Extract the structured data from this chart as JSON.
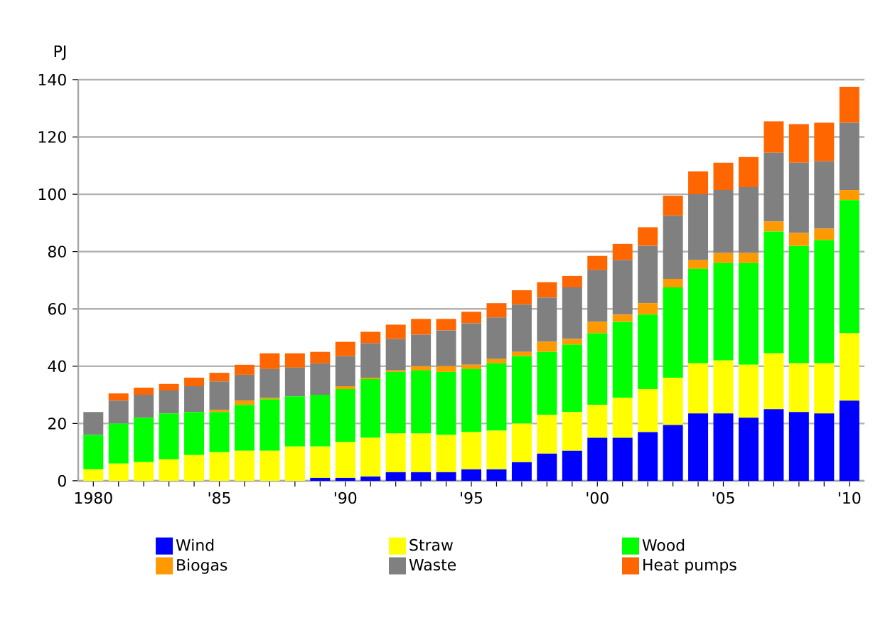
{
  "chart_data": {
    "type": "bar",
    "stacked": true,
    "ylabel": "PJ",
    "categories": [
      "1980",
      null,
      null,
      null,
      null,
      "'85",
      null,
      null,
      null,
      null,
      "'90",
      null,
      null,
      null,
      null,
      "'95",
      null,
      null,
      null,
      null,
      "'00",
      null,
      null,
      null,
      null,
      "'05",
      null,
      null,
      null,
      null,
      "'10"
    ],
    "ylim": [
      0,
      140
    ],
    "yticks": [
      0,
      20,
      40,
      60,
      80,
      100,
      120,
      140
    ],
    "grid": "y",
    "legend": "bottom",
    "series": [
      {
        "name": "Wind",
        "color": "#0000ff",
        "values": [
          0,
          0,
          0,
          0,
          0,
          0,
          0,
          0,
          0,
          1,
          1,
          1.5,
          3,
          3,
          3,
          4,
          4,
          6.5,
          9.5,
          10.5,
          15,
          15,
          17,
          19.5,
          23.5,
          23.5,
          22,
          25,
          24,
          23.5,
          28
        ]
      },
      {
        "name": "Straw",
        "color": "#ffff00",
        "values": [
          4,
          6,
          6.5,
          7.5,
          9,
          10,
          10.5,
          10.5,
          12,
          11,
          12.5,
          13.5,
          13.5,
          13.5,
          13,
          13,
          13.5,
          13.5,
          13.5,
          13.5,
          11.5,
          14,
          15,
          16.5,
          17.5,
          18.5,
          18.5,
          19.5,
          17,
          17.5,
          23.5
        ]
      },
      {
        "name": "Wood",
        "color": "#00ff00",
        "values": [
          12,
          14,
          15.5,
          16,
          15,
          14,
          16,
          18,
          17.5,
          18,
          18.5,
          20.5,
          21.5,
          22,
          22,
          22,
          23.5,
          23.5,
          22,
          23.5,
          25,
          26.5,
          26,
          31.5,
          33,
          34,
          35.5,
          42.5,
          41,
          43,
          46.5
        ]
      },
      {
        "name": "Biogas",
        "color": "#ff9900",
        "values": [
          0,
          0,
          0,
          0,
          0,
          0.7,
          1.5,
          0.5,
          0,
          0,
          1,
          0.5,
          0.5,
          1.5,
          2,
          1.5,
          1.5,
          1.5,
          3.5,
          2,
          4,
          2.5,
          4,
          3,
          3,
          3.5,
          3.5,
          3.5,
          4.5,
          4,
          3.5
        ]
      },
      {
        "name": "Waste",
        "color": "#808080",
        "values": [
          8,
          8,
          8,
          8,
          9,
          10,
          9,
          10,
          10,
          11,
          10.5,
          12,
          11,
          11,
          12.5,
          14.5,
          14.5,
          16.5,
          15.5,
          18,
          18,
          19,
          20,
          22,
          23,
          22,
          23,
          24,
          24.5,
          23.5,
          23.5
        ]
      },
      {
        "name": "Heat pumps",
        "color": "#ff6600",
        "values": [
          0,
          2.5,
          2.5,
          2.3,
          3,
          3,
          3.5,
          5.5,
          5,
          4,
          5,
          4,
          5,
          5.5,
          4,
          4,
          5,
          5,
          5.3,
          4,
          5,
          5.7,
          6.5,
          7,
          8,
          9.5,
          10.5,
          11,
          13.5,
          13.5,
          12.5
        ]
      }
    ]
  }
}
